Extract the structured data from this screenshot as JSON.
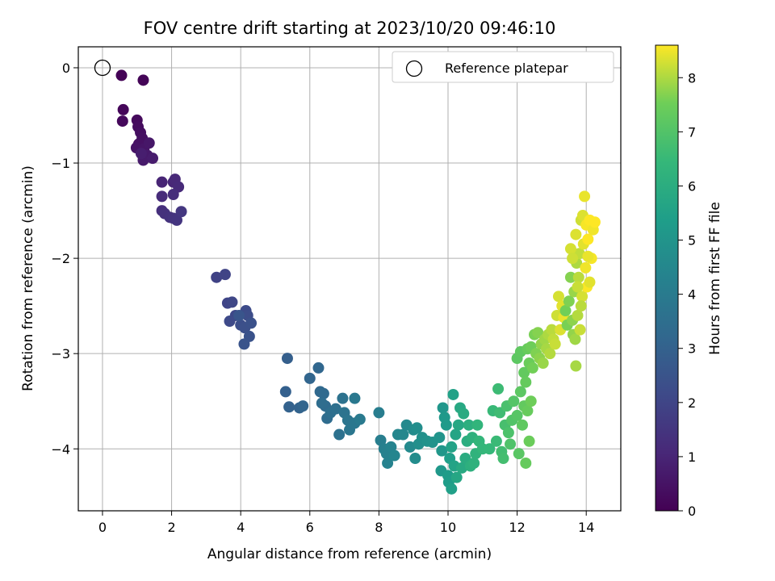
{
  "chart_data": {
    "type": "scatter",
    "title": "FOV centre drift starting at 2023/10/20 09:46:10",
    "xlabel": "Angular distance from reference (arcmin)",
    "ylabel": "Rotation from reference (arcmin)",
    "xlim": [
      -0.7,
      15.0
    ],
    "ylim": [
      -4.65,
      0.22
    ],
    "xticks": [
      0,
      2,
      4,
      6,
      8,
      10,
      12,
      14
    ],
    "yticks": [
      0,
      -1,
      -2,
      -3,
      -4
    ],
    "grid": true,
    "legend": {
      "placement": "top-right",
      "entries": [
        "Reference platepar"
      ]
    },
    "reference_point": {
      "x": 0,
      "y": 0,
      "marker": "open-circle"
    },
    "colorbar": {
      "label": "Hours from first FF file",
      "min": 0,
      "max": 8.6,
      "ticks": [
        0,
        1,
        2,
        3,
        4,
        5,
        6,
        7,
        8
      ],
      "colormap": "viridis"
    },
    "series": [
      {
        "points": [
          [
            0.55,
            -0.08,
            0.05
          ],
          [
            1.18,
            -0.13,
            0.1
          ],
          [
            0.6,
            -0.44,
            0.15
          ],
          [
            0.58,
            -0.56,
            0.2
          ],
          [
            1.0,
            -0.55,
            0.25
          ],
          [
            1.03,
            -0.62,
            0.3
          ],
          [
            1.1,
            -0.68,
            0.35
          ],
          [
            1.15,
            -0.74,
            0.4
          ],
          [
            1.05,
            -0.8,
            0.45
          ],
          [
            0.98,
            -0.84,
            0.5
          ],
          [
            1.2,
            -0.85,
            0.55
          ],
          [
            1.35,
            -0.79,
            0.6
          ],
          [
            1.3,
            -0.92,
            0.65
          ],
          [
            1.18,
            -0.97,
            0.7
          ],
          [
            1.45,
            -0.95,
            0.75
          ],
          [
            1.12,
            -0.9,
            0.8
          ],
          [
            1.72,
            -1.2,
            1.0
          ],
          [
            2.05,
            -1.2,
            1.05
          ],
          [
            2.1,
            -1.17,
            1.1
          ],
          [
            2.2,
            -1.25,
            1.15
          ],
          [
            1.72,
            -1.35,
            1.2
          ],
          [
            2.05,
            -1.33,
            1.25
          ],
          [
            1.72,
            -1.5,
            1.3
          ],
          [
            1.8,
            -1.53,
            1.35
          ],
          [
            1.95,
            -1.57,
            1.4
          ],
          [
            2.05,
            -1.58,
            1.45
          ],
          [
            2.15,
            -1.6,
            1.5
          ],
          [
            2.28,
            -1.51,
            1.55
          ],
          [
            3.3,
            -2.2,
            1.9
          ],
          [
            3.55,
            -2.17,
            1.95
          ],
          [
            3.62,
            -2.47,
            2.0
          ],
          [
            3.75,
            -2.46,
            2.05
          ],
          [
            3.85,
            -2.6,
            2.1
          ],
          [
            3.68,
            -2.66,
            2.15
          ],
          [
            4.15,
            -2.55,
            2.2
          ],
          [
            4.2,
            -2.6,
            2.25
          ],
          [
            4.0,
            -2.7,
            2.3
          ],
          [
            4.12,
            -2.73,
            2.35
          ],
          [
            4.3,
            -2.68,
            2.4
          ],
          [
            4.25,
            -2.82,
            2.45
          ],
          [
            4.1,
            -2.9,
            2.5
          ],
          [
            3.95,
            -2.6,
            2.55
          ],
          [
            5.35,
            -3.05,
            2.9
          ],
          [
            5.3,
            -3.4,
            2.95
          ],
          [
            5.4,
            -3.56,
            3.0
          ],
          [
            5.7,
            -3.57,
            3.05
          ],
          [
            5.8,
            -3.55,
            3.1
          ],
          [
            6.0,
            -3.26,
            3.15
          ],
          [
            6.25,
            -3.15,
            3.2
          ],
          [
            6.3,
            -3.4,
            3.25
          ],
          [
            6.4,
            -3.42,
            3.3
          ],
          [
            6.45,
            -3.55,
            3.35
          ],
          [
            6.5,
            -3.68,
            3.4
          ],
          [
            6.35,
            -3.52,
            3.45
          ],
          [
            6.6,
            -3.62,
            3.5
          ],
          [
            6.75,
            -3.58,
            3.55
          ],
          [
            6.85,
            -3.85,
            3.6
          ],
          [
            6.95,
            -3.47,
            3.65
          ],
          [
            7.0,
            -3.62,
            3.7
          ],
          [
            7.1,
            -3.7,
            3.75
          ],
          [
            7.15,
            -3.8,
            3.8
          ],
          [
            7.3,
            -3.73,
            3.85
          ],
          [
            7.3,
            -3.47,
            3.9
          ],
          [
            7.45,
            -3.69,
            3.95
          ],
          [
            8.0,
            -3.62,
            4.1
          ],
          [
            8.05,
            -3.91,
            4.15
          ],
          [
            8.15,
            -4.0,
            4.2
          ],
          [
            8.22,
            -4.05,
            4.25
          ],
          [
            8.25,
            -4.15,
            4.3
          ],
          [
            8.35,
            -3.98,
            4.35
          ],
          [
            8.45,
            -4.07,
            4.4
          ],
          [
            8.55,
            -3.85,
            4.45
          ],
          [
            8.7,
            -3.85,
            4.5
          ],
          [
            8.8,
            -3.75,
            4.55
          ],
          [
            8.9,
            -3.98,
            4.6
          ],
          [
            9.0,
            -3.8,
            4.65
          ],
          [
            9.05,
            -4.1,
            4.7
          ],
          [
            9.1,
            -3.78,
            4.75
          ],
          [
            9.15,
            -3.95,
            4.8
          ],
          [
            9.25,
            -3.88,
            4.85
          ],
          [
            9.4,
            -3.92,
            4.9
          ],
          [
            9.55,
            -3.93,
            4.95
          ],
          [
            9.75,
            -3.88,
            5.0
          ],
          [
            9.85,
            -3.57,
            5.05
          ],
          [
            9.82,
            -4.02,
            5.1
          ],
          [
            9.8,
            -4.23,
            5.15
          ],
          [
            9.9,
            -3.67,
            5.2
          ],
          [
            9.95,
            -3.75,
            5.25
          ],
          [
            10.0,
            -4.28,
            5.3
          ],
          [
            10.02,
            -4.35,
            5.35
          ],
          [
            10.05,
            -4.1,
            5.4
          ],
          [
            10.1,
            -4.42,
            5.45
          ],
          [
            10.15,
            -3.43,
            5.5
          ],
          [
            10.1,
            -3.98,
            5.55
          ],
          [
            10.18,
            -4.18,
            5.6
          ],
          [
            10.22,
            -3.85,
            5.65
          ],
          [
            10.25,
            -4.3,
            5.7
          ],
          [
            10.3,
            -3.75,
            5.75
          ],
          [
            10.35,
            -3.57,
            5.8
          ],
          [
            10.4,
            -4.2,
            5.85
          ],
          [
            10.45,
            -3.63,
            5.9
          ],
          [
            10.5,
            -4.1,
            5.95
          ],
          [
            10.55,
            -3.92,
            6.0
          ],
          [
            10.6,
            -3.75,
            6.05
          ],
          [
            10.65,
            -4.18,
            6.1
          ],
          [
            10.7,
            -3.88,
            6.15
          ],
          [
            10.75,
            -4.15,
            6.2
          ],
          [
            10.8,
            -4.05,
            6.25
          ],
          [
            10.85,
            -3.75,
            6.3
          ],
          [
            10.9,
            -3.92,
            6.35
          ],
          [
            11.0,
            -4.0,
            6.4
          ],
          [
            11.2,
            -4.0,
            6.45
          ],
          [
            11.3,
            -3.6,
            6.5
          ],
          [
            11.4,
            -3.92,
            6.55
          ],
          [
            11.45,
            -3.37,
            6.6
          ],
          [
            11.5,
            -3.62,
            6.65
          ],
          [
            11.55,
            -4.03,
            6.7
          ],
          [
            11.6,
            -4.1,
            6.75
          ],
          [
            11.65,
            -3.75,
            6.8
          ],
          [
            11.7,
            -3.55,
            6.85
          ],
          [
            11.75,
            -3.83,
            6.9
          ],
          [
            11.8,
            -3.95,
            6.95
          ],
          [
            11.85,
            -3.7,
            7.0
          ],
          [
            11.9,
            -3.5,
            7.05
          ],
          [
            12.0,
            -3.65,
            7.1
          ],
          [
            12.05,
            -4.05,
            7.15
          ],
          [
            12.1,
            -3.4,
            7.2
          ],
          [
            12.15,
            -3.75,
            7.25
          ],
          [
            12.2,
            -3.55,
            7.3
          ],
          [
            12.25,
            -4.15,
            7.35
          ],
          [
            12.3,
            -3.6,
            7.4
          ],
          [
            12.35,
            -3.92,
            7.45
          ],
          [
            12.4,
            -3.5,
            7.5
          ],
          [
            12.0,
            -3.05,
            7.2
          ],
          [
            12.1,
            -2.98,
            7.25
          ],
          [
            12.2,
            -3.2,
            7.3
          ],
          [
            12.25,
            -3.3,
            7.35
          ],
          [
            12.3,
            -2.95,
            7.4
          ],
          [
            12.35,
            -3.1,
            7.45
          ],
          [
            12.4,
            -2.93,
            7.5
          ],
          [
            12.45,
            -3.15,
            7.55
          ],
          [
            12.5,
            -2.8,
            7.6
          ],
          [
            12.55,
            -3.0,
            7.65
          ],
          [
            12.6,
            -2.78,
            7.7
          ],
          [
            12.65,
            -3.05,
            7.75
          ],
          [
            12.7,
            -2.9,
            7.8
          ],
          [
            12.75,
            -3.1,
            7.85
          ],
          [
            12.8,
            -2.85,
            7.9
          ],
          [
            12.85,
            -2.95,
            7.95
          ],
          [
            12.9,
            -2.8,
            8.0
          ],
          [
            12.95,
            -3.0,
            8.05
          ],
          [
            13.0,
            -2.75,
            8.1
          ],
          [
            13.05,
            -2.85,
            8.15
          ],
          [
            13.1,
            -2.9,
            8.2
          ],
          [
            13.15,
            -2.6,
            8.25
          ],
          [
            13.2,
            -2.4,
            8.3
          ],
          [
            13.25,
            -2.75,
            8.35
          ],
          [
            13.3,
            -2.5,
            8.4
          ],
          [
            13.35,
            -2.62,
            8.45
          ],
          [
            13.4,
            -2.55,
            7.55
          ],
          [
            13.45,
            -2.7,
            7.6
          ],
          [
            13.5,
            -2.45,
            7.65
          ],
          [
            13.55,
            -2.2,
            7.7
          ],
          [
            13.6,
            -2.65,
            7.75
          ],
          [
            13.62,
            -2.8,
            7.8
          ],
          [
            13.65,
            -2.35,
            7.85
          ],
          [
            13.68,
            -2.85,
            7.9
          ],
          [
            13.7,
            -3.13,
            7.95
          ],
          [
            13.72,
            -2.05,
            8.0
          ],
          [
            13.75,
            -2.6,
            8.05
          ],
          [
            13.78,
            -2.2,
            8.1
          ],
          [
            13.8,
            -1.95,
            8.15
          ],
          [
            13.82,
            -2.75,
            8.2
          ],
          [
            13.85,
            -1.6,
            8.25
          ],
          [
            13.88,
            -2.4,
            8.3
          ],
          [
            13.9,
            -1.55,
            8.35
          ],
          [
            13.92,
            -1.85,
            8.4
          ],
          [
            13.95,
            -1.35,
            8.45
          ],
          [
            13.98,
            -2.1,
            8.5
          ],
          [
            14.0,
            -1.65,
            8.55
          ],
          [
            14.02,
            -2.3,
            8.58
          ],
          [
            14.05,
            -1.8,
            8.6
          ],
          [
            14.1,
            -1.6,
            8.6
          ],
          [
            14.15,
            -2.0,
            8.55
          ],
          [
            14.2,
            -1.7,
            8.5
          ],
          [
            14.25,
            -1.62,
            8.6
          ],
          [
            13.55,
            -1.9,
            8.3
          ],
          [
            13.6,
            -2.0,
            8.25
          ],
          [
            13.7,
            -1.75,
            8.35
          ],
          [
            13.75,
            -2.3,
            8.2
          ],
          [
            13.85,
            -2.5,
            8.1
          ],
          [
            14.1,
            -2.25,
            8.4
          ],
          [
            14.05,
            -1.98,
            8.45
          ]
        ]
      }
    ]
  }
}
